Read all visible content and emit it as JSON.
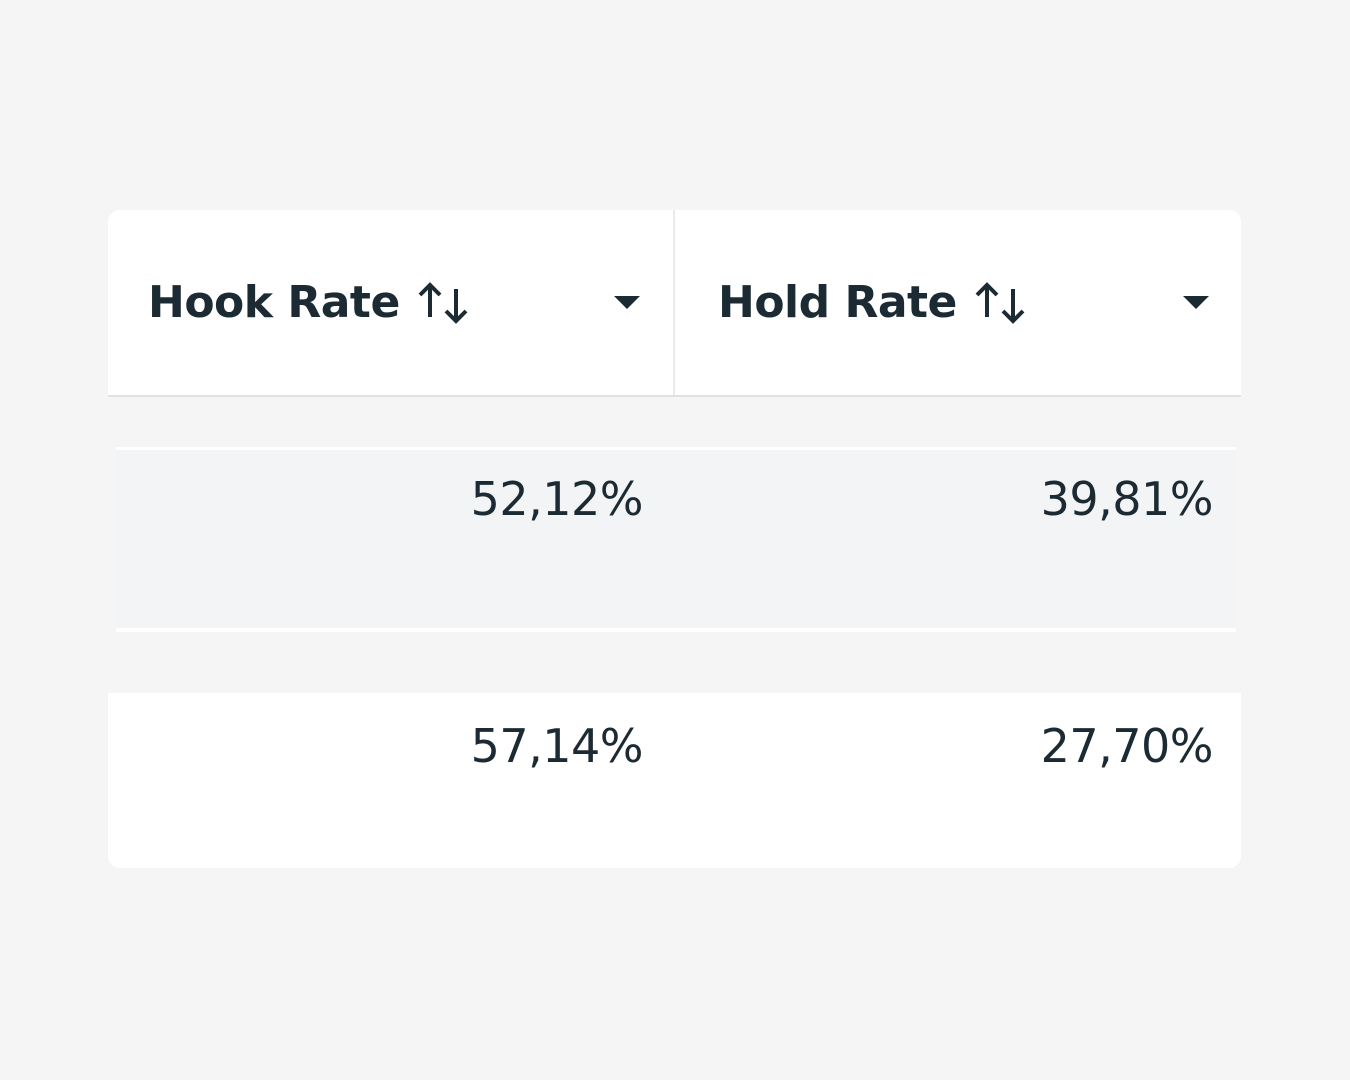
{
  "table": {
    "columns": [
      "Hook Rate",
      "Hold Rate"
    ],
    "rows": [
      [
        "52,12%",
        "39,81%"
      ],
      [
        "57,14%",
        "27,70%"
      ]
    ]
  }
}
